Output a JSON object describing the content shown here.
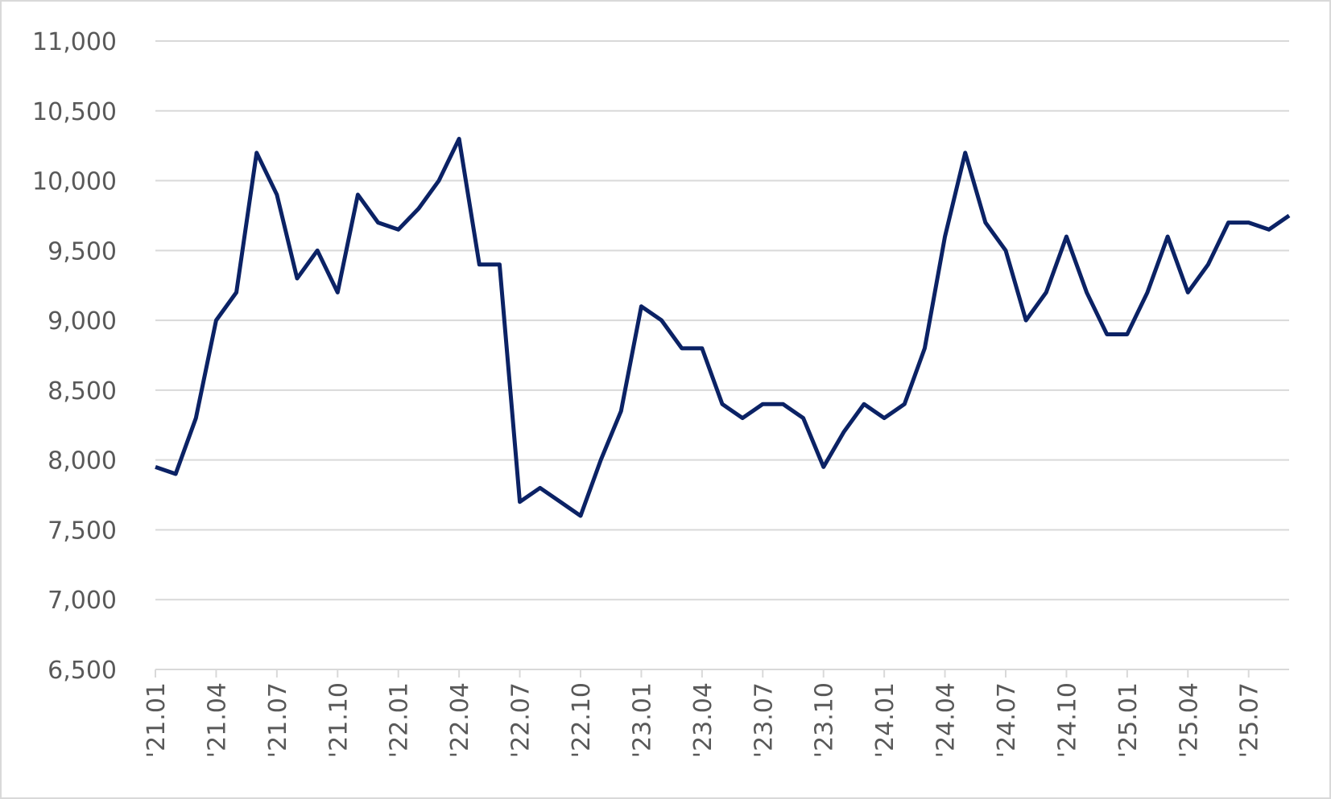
{
  "chart_data": {
    "type": "line",
    "x": [
      "'21.01",
      "'21.02",
      "'21.03",
      "'21.04",
      "'21.05",
      "'21.06",
      "'21.07",
      "'21.08",
      "'21.09",
      "'21.10",
      "'21.11",
      "'21.12",
      "'22.01",
      "'22.02",
      "'22.03",
      "'22.04",
      "'22.05",
      "'22.06",
      "'22.07",
      "'22.08",
      "'22.09",
      "'22.10",
      "'22.11",
      "'22.12",
      "'23.01",
      "'23.02",
      "'23.03",
      "'23.04",
      "'23.05",
      "'23.06",
      "'23.07",
      "'23.08",
      "'23.09",
      "'23.10",
      "'23.11",
      "'23.12",
      "'24.01",
      "'24.02",
      "'24.03",
      "'24.04",
      "'24.05",
      "'24.06",
      "'24.07",
      "'24.08",
      "'24.09",
      "'24.10",
      "'24.11",
      "'24.12",
      "'25.01",
      "'25.02",
      "'25.03",
      "'25.04",
      "'25.05",
      "'25.06",
      "'25.07",
      "'25.08",
      "'25.09"
    ],
    "series": [
      {
        "color": "#0b2265",
        "values": [
          7950,
          7900,
          8300,
          9000,
          9200,
          10200,
          9900,
          9300,
          9500,
          9200,
          9900,
          9700,
          9650,
          9800,
          10000,
          10300,
          9400,
          9400,
          7700,
          7800,
          7700,
          7600,
          8000,
          8350,
          9100,
          9000,
          8800,
          8800,
          8400,
          8300,
          8400,
          8400,
          8300,
          7950,
          8200,
          8400,
          8300,
          8400,
          8800,
          9600,
          10200,
          9700,
          9500,
          9000,
          9200,
          9600,
          9200,
          8900,
          8900,
          9200,
          9600,
          9200,
          9400,
          9700,
          9700,
          9650,
          9750
        ]
      }
    ],
    "ylim": [
      6500,
      11000
    ],
    "yticks": [
      {
        "value": 6500,
        "label": "6,500"
      },
      {
        "value": 7000,
        "label": "7,000"
      },
      {
        "value": 7500,
        "label": "7,500"
      },
      {
        "value": 8000,
        "label": "8,000"
      },
      {
        "value": 8500,
        "label": "8,500"
      },
      {
        "value": 9000,
        "label": "9,000"
      },
      {
        "value": 9500,
        "label": "9,500"
      },
      {
        "value": 10000,
        "label": "10,000"
      },
      {
        "value": 10500,
        "label": "10,500"
      },
      {
        "value": 11000,
        "label": "11,000"
      }
    ],
    "xticks": [
      "'21.01",
      "'21.04",
      "'21.07",
      "'21.10",
      "'22.01",
      "'22.04",
      "'22.07",
      "'22.10",
      "'23.01",
      "'23.04",
      "'23.07",
      "'23.10",
      "'24.01",
      "'24.04",
      "'24.07",
      "'24.10",
      "'25.01",
      "'25.04",
      "'25.07"
    ],
    "grid": true
  }
}
